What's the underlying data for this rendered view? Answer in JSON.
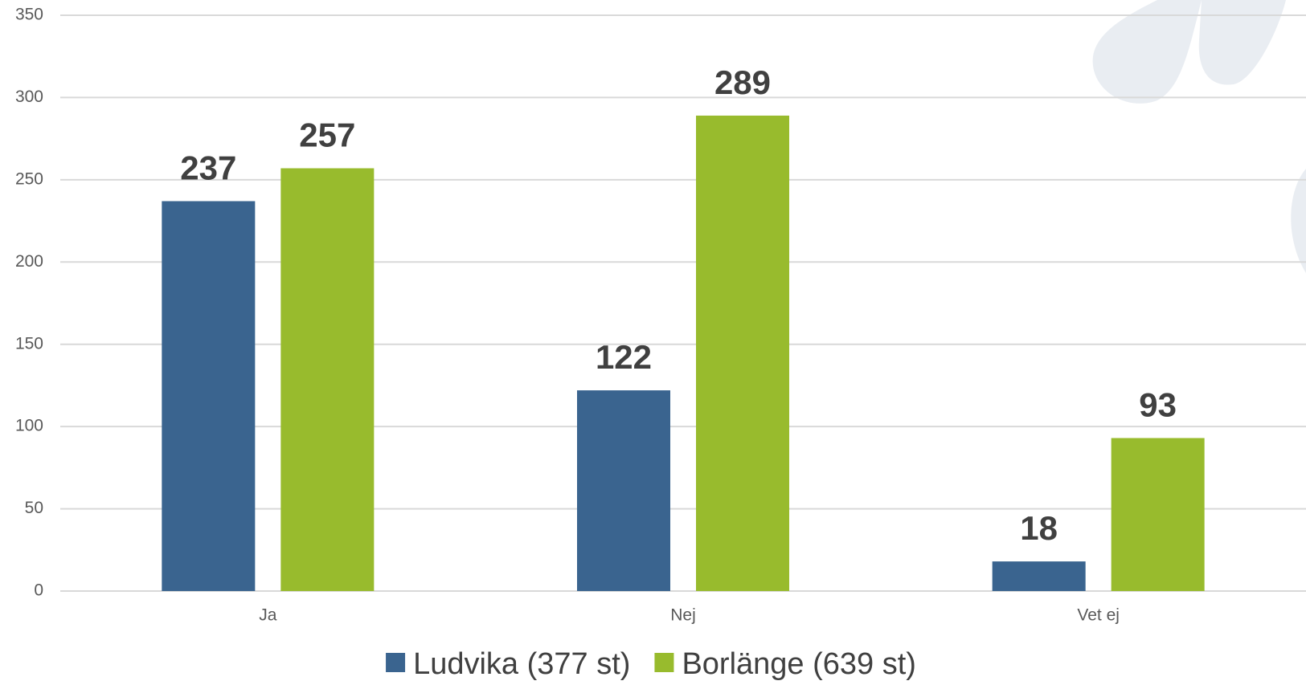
{
  "chart_data": {
    "type": "bar",
    "categories": [
      "Ja",
      "Nej",
      "Vet ej"
    ],
    "series": [
      {
        "name": "Ludvika (377 st)",
        "color": "#3a648f",
        "values": [
          237,
          122,
          18
        ]
      },
      {
        "name": "Borlänge (639 st)",
        "color": "#98bb2d",
        "values": [
          257,
          289,
          93
        ]
      }
    ],
    "ylim": [
      0,
      350
    ],
    "yticks": [
      0,
      50,
      100,
      150,
      200,
      250,
      300,
      350
    ],
    "grid": true,
    "legend": "bottom"
  }
}
